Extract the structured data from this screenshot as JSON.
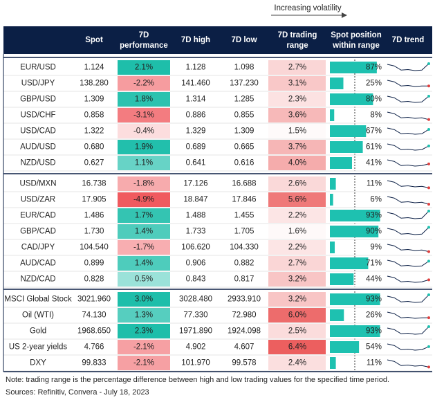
{
  "header": {
    "volatility": "Increasing volatility",
    "columns": [
      "Spot",
      [
        "7D",
        "performance"
      ],
      "7D high",
      "7D low",
      [
        "7D trading",
        "range"
      ],
      [
        "Spot position",
        "within range"
      ],
      "7D trend"
    ]
  },
  "groups": [
    [
      [
        "EUR/USD",
        "1.124",
        {
          "value": 2.1,
          "label": "2.1%"
        },
        "1.128",
        "1.098",
        {
          "value": 2.7,
          "label": "2.7%"
        },
        {
          "value": 87,
          "label": "87%"
        }
      ],
      [
        "USD/JPY",
        "138.280",
        {
          "value": -2.2,
          "label": "-2.2%"
        },
        "141.460",
        "137.230",
        {
          "value": 3.1,
          "label": "3.1%"
        },
        {
          "value": 25,
          "label": "25%"
        }
      ],
      [
        "GBP/USD",
        "1.309",
        {
          "value": 1.8,
          "label": "1.8%"
        },
        "1.314",
        "1.285",
        {
          "value": 2.3,
          "label": "2.3%"
        },
        {
          "value": 80,
          "label": "80%"
        }
      ],
      [
        "USD/CHF",
        "0.858",
        {
          "value": -3.1,
          "label": "-3.1%"
        },
        "0.886",
        "0.855",
        {
          "value": 3.6,
          "label": "3.6%"
        },
        {
          "value": 8,
          "label": "8%"
        }
      ],
      [
        "USD/CAD",
        "1.322",
        {
          "value": -0.4,
          "label": "-0.4%"
        },
        "1.329",
        "1.309",
        {
          "value": 1.5,
          "label": "1.5%"
        },
        {
          "value": 67,
          "label": "67%"
        }
      ],
      [
        "AUD/USD",
        "0.680",
        {
          "value": 1.9,
          "label": "1.9%"
        },
        "0.689",
        "0.665",
        {
          "value": 3.7,
          "label": "3.7%"
        },
        {
          "value": 61,
          "label": "61%"
        }
      ],
      [
        "NZD/USD",
        "0.627",
        {
          "value": 1.1,
          "label": "1.1%"
        },
        "0.641",
        "0.616",
        {
          "value": 4.0,
          "label": "4.0%"
        },
        {
          "value": 41,
          "label": "41%"
        }
      ]
    ],
    [
      [
        "USD/MXN",
        "16.738",
        {
          "value": -1.8,
          "label": "-1.8%"
        },
        "17.126",
        "16.688",
        {
          "value": 2.6,
          "label": "2.6%"
        },
        {
          "value": 11,
          "label": "11%"
        }
      ],
      [
        "USD/ZAR",
        "17.905",
        {
          "value": -4.9,
          "label": "-4.9%"
        },
        "18.847",
        "17.846",
        {
          "value": 5.6,
          "label": "5.6%"
        },
        {
          "value": 6,
          "label": "6%"
        }
      ],
      [
        "EUR/CAD",
        "1.486",
        {
          "value": 1.7,
          "label": "1.7%"
        },
        "1.488",
        "1.455",
        {
          "value": 2.2,
          "label": "2.2%"
        },
        {
          "value": 93,
          "label": "93%"
        }
      ],
      [
        "GBP/CAD",
        "1.730",
        {
          "value": 1.4,
          "label": "1.4%"
        },
        "1.733",
        "1.705",
        {
          "value": 1.6,
          "label": "1.6%"
        },
        {
          "value": 90,
          "label": "90%"
        }
      ],
      [
        "CAD/JPY",
        "104.540",
        {
          "value": -1.7,
          "label": "-1.7%"
        },
        "106.620",
        "104.330",
        {
          "value": 2.2,
          "label": "2.2%"
        },
        {
          "value": 9,
          "label": "9%"
        }
      ],
      [
        "AUD/CAD",
        "0.899",
        {
          "value": 1.4,
          "label": "1.4%"
        },
        "0.906",
        "0.882",
        {
          "value": 2.7,
          "label": "2.7%"
        },
        {
          "value": 71,
          "label": "71%"
        }
      ],
      [
        "NZD/CAD",
        "0.828",
        {
          "value": 0.5,
          "label": "0.5%"
        },
        "0.843",
        "0.817",
        {
          "value": 3.2,
          "label": "3.2%"
        },
        {
          "value": 44,
          "label": "44%"
        }
      ]
    ],
    [
      [
        "MSCI Global Stock",
        "3021.960",
        {
          "value": 3.0,
          "label": "3.0%"
        },
        "3028.480",
        "2933.910",
        {
          "value": 3.2,
          "label": "3.2%"
        },
        {
          "value": 93,
          "label": "93%"
        }
      ],
      [
        "Oil (WTI)",
        "74.130",
        {
          "value": 1.3,
          "label": "1.3%"
        },
        "77.330",
        "72.980",
        {
          "value": 6.0,
          "label": "6.0%"
        },
        {
          "value": 26,
          "label": "26%"
        }
      ],
      [
        "Gold",
        "1968.650",
        {
          "value": 2.3,
          "label": "2.3%"
        },
        "1971.890",
        "1924.098",
        {
          "value": 2.5,
          "label": "2.5%"
        },
        {
          "value": 93,
          "label": "93%"
        }
      ],
      [
        "US 2-year yields",
        "4.766",
        {
          "value": -2.1,
          "label": "-2.1%"
        },
        "4.902",
        "4.607",
        {
          "value": 6.4,
          "label": "6.4%"
        },
        {
          "value": 54,
          "label": "54%"
        }
      ],
      [
        "DXY",
        "99.833",
        {
          "value": -2.1,
          "label": "-2.1%"
        },
        "101.970",
        "99.578",
        {
          "value": 2.4,
          "label": "2.4%"
        },
        {
          "value": 11,
          "label": "11%"
        }
      ]
    ]
  ],
  "notes": [
    "Note: trading range is the percentage difference between high and low trading values for the specified time period.",
    "Sources: Refinitiv, Convera - July 18, 2023"
  ]
}
